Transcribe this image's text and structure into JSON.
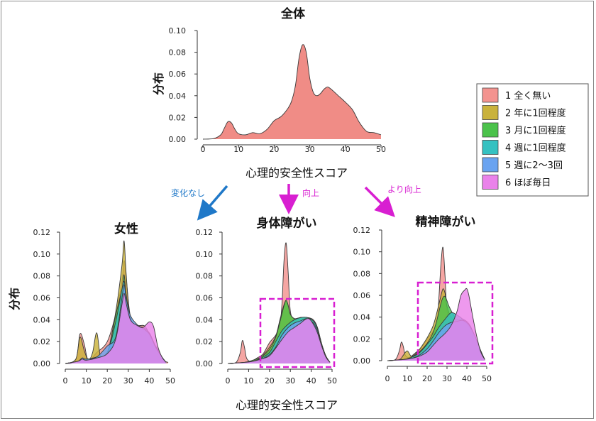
{
  "figure": {
    "arrows": [
      {
        "label": "変化なし",
        "color": "#1f78c8"
      },
      {
        "label": "向上",
        "color": "#d81fd1"
      },
      {
        "label": "より向上",
        "color": "#d81fd1"
      }
    ]
  },
  "chart_data": [
    {
      "type": "area",
      "title": "全体",
      "xlabel": "心理的安全性スコア",
      "ylabel": "分布",
      "xlim": [
        0,
        50
      ],
      "ylim": [
        0,
        0.1
      ],
      "xticks": [
        0,
        10,
        20,
        30,
        40,
        50
      ],
      "yticks": [
        "0.00",
        "0.02",
        "0.04",
        "0.06",
        "0.08",
        "0.10"
      ],
      "series": [
        {
          "name": "",
          "color": "#f08c86",
          "x": [
            0,
            3,
            5,
            6,
            7,
            8,
            9,
            10,
            12,
            14,
            16,
            18,
            20,
            22,
            24,
            25,
            26,
            27,
            28,
            29,
            30,
            31,
            32,
            33,
            34,
            35,
            36,
            38,
            40,
            42,
            44,
            46,
            48,
            50
          ],
          "y": [
            0,
            0.0005,
            0.004,
            0.01,
            0.016,
            0.015,
            0.009,
            0.005,
            0.004,
            0.006,
            0.005,
            0.009,
            0.017,
            0.021,
            0.029,
            0.036,
            0.05,
            0.075,
            0.087,
            0.08,
            0.056,
            0.043,
            0.04,
            0.042,
            0.046,
            0.048,
            0.046,
            0.04,
            0.034,
            0.027,
            0.015,
            0.007,
            0.006,
            0.004
          ]
        }
      ]
    },
    {
      "type": "area",
      "title": "女性",
      "xlabel": "",
      "ylabel": "分布",
      "xlim": [
        0,
        50
      ],
      "ylim": [
        0,
        0.12
      ],
      "xticks": [
        0,
        10,
        20,
        30,
        40,
        50
      ],
      "yticks": [
        "0.00",
        "0.02",
        "0.04",
        "0.06",
        "0.08",
        "0.10",
        "0.12"
      ],
      "series": [
        {
          "name": "1 全く無い",
          "x": [
            0,
            5,
            7,
            9,
            11,
            15,
            20,
            24,
            27,
            28,
            29,
            31,
            34,
            38,
            41,
            44,
            47,
            49
          ],
          "y": [
            0,
            0.003,
            0.027,
            0.018,
            0.003,
            0.01,
            0.02,
            0.045,
            0.075,
            0.094,
            0.078,
            0.043,
            0.035,
            0.034,
            0.022,
            0.013,
            0.003,
            0.001
          ]
        },
        {
          "name": "2 年に1回程度",
          "x": [
            0,
            5,
            7,
            9,
            11,
            13,
            15,
            17,
            20,
            24,
            27,
            28,
            29,
            31,
            34,
            37,
            40,
            43,
            46,
            48
          ],
          "y": [
            0,
            0.004,
            0.024,
            0.012,
            0.003,
            0.01,
            0.028,
            0.004,
            0.009,
            0.047,
            0.09,
            0.112,
            0.082,
            0.037,
            0.033,
            0.024,
            0.028,
            0.014,
            0.006,
            0.001
          ]
        },
        {
          "name": "3 月に1回程度",
          "x": [
            0,
            6,
            8,
            10,
            15,
            20,
            24,
            27,
            28,
            29,
            31,
            34,
            37,
            40,
            43,
            46,
            48
          ],
          "y": [
            0,
            0.002,
            0.005,
            0.004,
            0.006,
            0.01,
            0.044,
            0.068,
            0.081,
            0.062,
            0.041,
            0.034,
            0.032,
            0.026,
            0.015,
            0.006,
            0.001
          ]
        },
        {
          "name": "4 週に1回程度",
          "x": [
            0,
            6,
            8,
            10,
            15,
            20,
            24,
            27,
            28,
            29,
            31,
            34,
            37,
            40,
            43,
            46,
            48
          ],
          "y": [
            0,
            0.002,
            0.004,
            0.003,
            0.005,
            0.01,
            0.038,
            0.068,
            0.075,
            0.063,
            0.039,
            0.034,
            0.033,
            0.028,
            0.016,
            0.006,
            0.001
          ]
        },
        {
          "name": "5 週に2〜3回",
          "x": [
            0,
            6,
            8,
            10,
            15,
            20,
            24,
            27,
            28,
            29,
            31,
            34,
            37,
            40,
            43,
            46,
            48
          ],
          "y": [
            0,
            0.002,
            0.005,
            0.004,
            0.006,
            0.016,
            0.024,
            0.06,
            0.072,
            0.06,
            0.044,
            0.036,
            0.032,
            0.027,
            0.015,
            0.006,
            0.001
          ]
        },
        {
          "name": "6 ほぼ毎日",
          "x": [
            0,
            6,
            8,
            10,
            15,
            20,
            24,
            27,
            28,
            29,
            31,
            34,
            37,
            40,
            42,
            44,
            46,
            48
          ],
          "y": [
            0,
            0.002,
            0.004,
            0.003,
            0.005,
            0.009,
            0.022,
            0.054,
            0.064,
            0.055,
            0.04,
            0.035,
            0.033,
            0.038,
            0.034,
            0.016,
            0.006,
            0.001
          ]
        }
      ]
    },
    {
      "type": "area",
      "title": "身体障がい",
      "xlabel": "心理的安全性スコア",
      "ylabel": "",
      "xlim": [
        0,
        50
      ],
      "ylim": [
        0,
        0.12
      ],
      "xticks": [
        0,
        10,
        20,
        30,
        40,
        50
      ],
      "yticks": [
        "0.00",
        "0.02",
        "0.04",
        "0.06",
        "0.08",
        "0.10",
        "0.12"
      ],
      "series": [
        {
          "name": "1 全く無い",
          "x": [
            0,
            4,
            6,
            7,
            8,
            9,
            11,
            14,
            17,
            20,
            23,
            25,
            26,
            27,
            28,
            29,
            30,
            32,
            35,
            38,
            41,
            43,
            45,
            47,
            49
          ],
          "y": [
            0,
            0.001,
            0.01,
            0.021,
            0.015,
            0.005,
            0.002,
            0.005,
            0.009,
            0.019,
            0.026,
            0.035,
            0.055,
            0.095,
            0.11,
            0.082,
            0.048,
            0.04,
            0.041,
            0.042,
            0.04,
            0.033,
            0.018,
            0.007,
            0.001
          ]
        },
        {
          "name": "2 年に1回程度",
          "x": [
            0,
            8,
            12,
            16,
            20,
            23,
            25,
            27,
            28,
            29,
            30,
            32,
            35,
            38,
            41,
            43,
            45,
            47,
            49
          ],
          "y": [
            0,
            0.001,
            0.003,
            0.006,
            0.015,
            0.025,
            0.04,
            0.054,
            0.057,
            0.052,
            0.045,
            0.041,
            0.042,
            0.042,
            0.039,
            0.032,
            0.018,
            0.007,
            0.001
          ]
        },
        {
          "name": "3 月に1回程度",
          "x": [
            0,
            8,
            12,
            16,
            20,
            23,
            25,
            27,
            28,
            29,
            30,
            32,
            35,
            38,
            41,
            43,
            45,
            47,
            49
          ],
          "y": [
            0,
            0.001,
            0.003,
            0.006,
            0.013,
            0.024,
            0.038,
            0.053,
            0.058,
            0.053,
            0.045,
            0.041,
            0.042,
            0.042,
            0.039,
            0.032,
            0.018,
            0.007,
            0.001
          ]
        },
        {
          "name": "4 週に1回程度",
          "x": [
            0,
            8,
            12,
            16,
            20,
            23,
            26,
            29,
            32,
            35,
            38,
            41,
            43,
            45,
            47,
            49
          ],
          "y": [
            0,
            0.001,
            0.002,
            0.005,
            0.01,
            0.02,
            0.03,
            0.036,
            0.04,
            0.042,
            0.042,
            0.039,
            0.032,
            0.018,
            0.007,
            0.001
          ]
        },
        {
          "name": "5 週に2〜3回",
          "x": [
            0,
            8,
            12,
            16,
            20,
            23,
            26,
            29,
            32,
            35,
            38,
            41,
            43,
            45,
            47,
            49
          ],
          "y": [
            0,
            0.001,
            0.002,
            0.004,
            0.008,
            0.015,
            0.026,
            0.033,
            0.037,
            0.039,
            0.041,
            0.037,
            0.03,
            0.017,
            0.006,
            0.001
          ]
        },
        {
          "name": "6 ほぼ毎日",
          "x": [
            0,
            8,
            12,
            16,
            20,
            23,
            26,
            29,
            32,
            35,
            37,
            39,
            41,
            43,
            45,
            47,
            49
          ],
          "y": [
            0,
            0.001,
            0.002,
            0.004,
            0.007,
            0.014,
            0.022,
            0.029,
            0.033,
            0.037,
            0.04,
            0.041,
            0.036,
            0.028,
            0.016,
            0.006,
            0.001
          ]
        }
      ]
    },
    {
      "type": "area",
      "title": "精神障がい",
      "xlabel": "",
      "ylabel": "",
      "xlim": [
        0,
        50
      ],
      "ylim": [
        0,
        0.12
      ],
      "xticks": [
        0,
        10,
        20,
        30,
        40,
        50
      ],
      "yticks": [
        "0.00",
        "0.02",
        "0.04",
        "0.06",
        "0.08",
        "0.10",
        "0.12"
      ],
      "series": [
        {
          "name": "1 全く無い",
          "x": [
            0,
            4,
            6,
            7,
            8,
            9,
            11,
            14,
            17,
            20,
            23,
            25,
            26,
            27,
            28,
            29,
            30,
            32,
            35,
            38,
            41,
            43,
            45,
            47,
            49
          ],
          "y": [
            0,
            0.001,
            0.009,
            0.017,
            0.013,
            0.005,
            0.003,
            0.007,
            0.012,
            0.02,
            0.027,
            0.036,
            0.06,
            0.09,
            0.104,
            0.078,
            0.046,
            0.037,
            0.037,
            0.038,
            0.034,
            0.027,
            0.017,
            0.007,
            0.001
          ]
        },
        {
          "name": "2 年に1回程度",
          "x": [
            0,
            6,
            8,
            10,
            12,
            14,
            16,
            20,
            23,
            25,
            27,
            28,
            29,
            30,
            32,
            35,
            38,
            41,
            44,
            47,
            49
          ],
          "y": [
            0,
            0.001,
            0.005,
            0.009,
            0.004,
            0.006,
            0.01,
            0.021,
            0.032,
            0.045,
            0.06,
            0.066,
            0.062,
            0.05,
            0.04,
            0.037,
            0.036,
            0.031,
            0.022,
            0.009,
            0.001
          ]
        },
        {
          "name": "3 月に1回程度",
          "x": [
            0,
            8,
            12,
            16,
            20,
            23,
            25,
            27,
            28,
            29,
            30,
            31,
            33,
            35,
            38,
            41,
            44,
            47,
            49
          ],
          "y": [
            0,
            0.001,
            0.003,
            0.008,
            0.016,
            0.026,
            0.038,
            0.053,
            0.058,
            0.059,
            0.055,
            0.05,
            0.043,
            0.038,
            0.037,
            0.032,
            0.022,
            0.009,
            0.001
          ]
        },
        {
          "name": "4 週に1回程度",
          "x": [
            0,
            8,
            12,
            16,
            20,
            23,
            26,
            29,
            32,
            35,
            38,
            41,
            44,
            47,
            49
          ],
          "y": [
            0,
            0.001,
            0.003,
            0.007,
            0.015,
            0.022,
            0.031,
            0.038,
            0.044,
            0.042,
            0.038,
            0.032,
            0.022,
            0.009,
            0.001
          ]
        },
        {
          "name": "5 週に2〜3回",
          "x": [
            0,
            8,
            12,
            16,
            20,
            23,
            26,
            29,
            32,
            35,
            38,
            41,
            44,
            47,
            49
          ],
          "y": [
            0,
            0.001,
            0.002,
            0.005,
            0.011,
            0.018,
            0.026,
            0.032,
            0.035,
            0.036,
            0.037,
            0.033,
            0.023,
            0.009,
            0.001
          ]
        },
        {
          "name": "6 ほぼ毎日",
          "x": [
            0,
            8,
            12,
            16,
            20,
            23,
            26,
            29,
            32,
            35,
            37,
            39,
            40,
            41,
            43,
            45,
            47,
            49
          ],
          "y": [
            0,
            0.001,
            0.002,
            0.004,
            0.008,
            0.014,
            0.02,
            0.025,
            0.032,
            0.045,
            0.06,
            0.065,
            0.066,
            0.06,
            0.04,
            0.022,
            0.008,
            0.001
          ]
        }
      ]
    }
  ],
  "legend": {
    "items": [
      {
        "label": "1  全く無い",
        "color": "#f3938f"
      },
      {
        "label": "2  年に1回程度",
        "color": "#c9b23c"
      },
      {
        "label": "3  月に1回程度",
        "color": "#4bc24b"
      },
      {
        "label": "4  週に1回程度",
        "color": "#35c1c1"
      },
      {
        "label": "5  週に2〜3回",
        "color": "#6aa3f0"
      },
      {
        "label": "6  ほぼ毎日",
        "color": "#ea82ea"
      }
    ]
  }
}
